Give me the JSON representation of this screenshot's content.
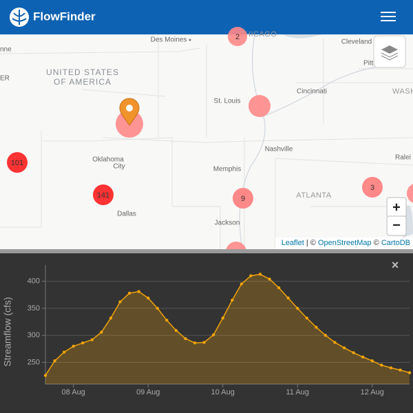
{
  "header": {
    "title": "FlowFinder"
  },
  "map": {
    "labels": [
      "Des Moines",
      "CHICAGO",
      "Cleveland",
      "Pitt",
      "nne",
      "UNITED STATES",
      "OF AMERICA",
      "ER",
      "St. Louis",
      "Cincinnati",
      "WASH",
      "Nashville",
      "Oklahoma",
      "City",
      "Memphis",
      "Ralei",
      "ATLANTA",
      "Dallas",
      "Jackson"
    ],
    "clusters": [
      2,
      101,
      141,
      9,
      3
    ],
    "zoom_in": "+",
    "zoom_out": "−",
    "attribution": {
      "leaflet": "Leaflet",
      "sep1": " | © ",
      "osm": "OpenStreetMap",
      "sep2": " © ",
      "carto": "CartoDB"
    }
  },
  "close": "×",
  "chart_data": {
    "type": "line",
    "ylabel": "Streamflow (cfs)",
    "x": [
      7.625,
      7.75,
      7.875,
      8.0,
      8.125,
      8.25,
      8.375,
      8.5,
      8.625,
      8.75,
      8.875,
      9.0,
      9.125,
      9.25,
      9.375,
      9.5,
      9.625,
      9.75,
      9.875,
      10.0,
      10.125,
      10.25,
      10.375,
      10.5,
      10.625,
      10.75,
      10.875,
      11.0,
      11.125,
      11.25,
      11.375,
      11.5,
      11.625,
      11.75,
      11.875,
      12.0,
      12.125,
      12.25,
      12.375,
      12.5
    ],
    "values": [
      226,
      253,
      269,
      280,
      286,
      292,
      306,
      332,
      362,
      378,
      381,
      369,
      350,
      328,
      309,
      294,
      286,
      287,
      301,
      332,
      365,
      395,
      410,
      413,
      404,
      388,
      369,
      350,
      332,
      315,
      300,
      287,
      277,
      268,
      260,
      253,
      245,
      240,
      236,
      231
    ],
    "color": "#f0a30a",
    "xlim": [
      7.625,
      12.5
    ],
    "xticks": [
      {
        "value": 8,
        "label": "08 Aug"
      },
      {
        "value": 9,
        "label": "09 Aug"
      },
      {
        "value": 10,
        "label": "10 Aug"
      },
      {
        "value": 11,
        "label": "11 Aug"
      },
      {
        "value": 12,
        "label": "12 Aug"
      }
    ],
    "ylim": [
      210,
      430
    ],
    "yticks": [
      250,
      300,
      350,
      400
    ],
    "grid": true
  }
}
